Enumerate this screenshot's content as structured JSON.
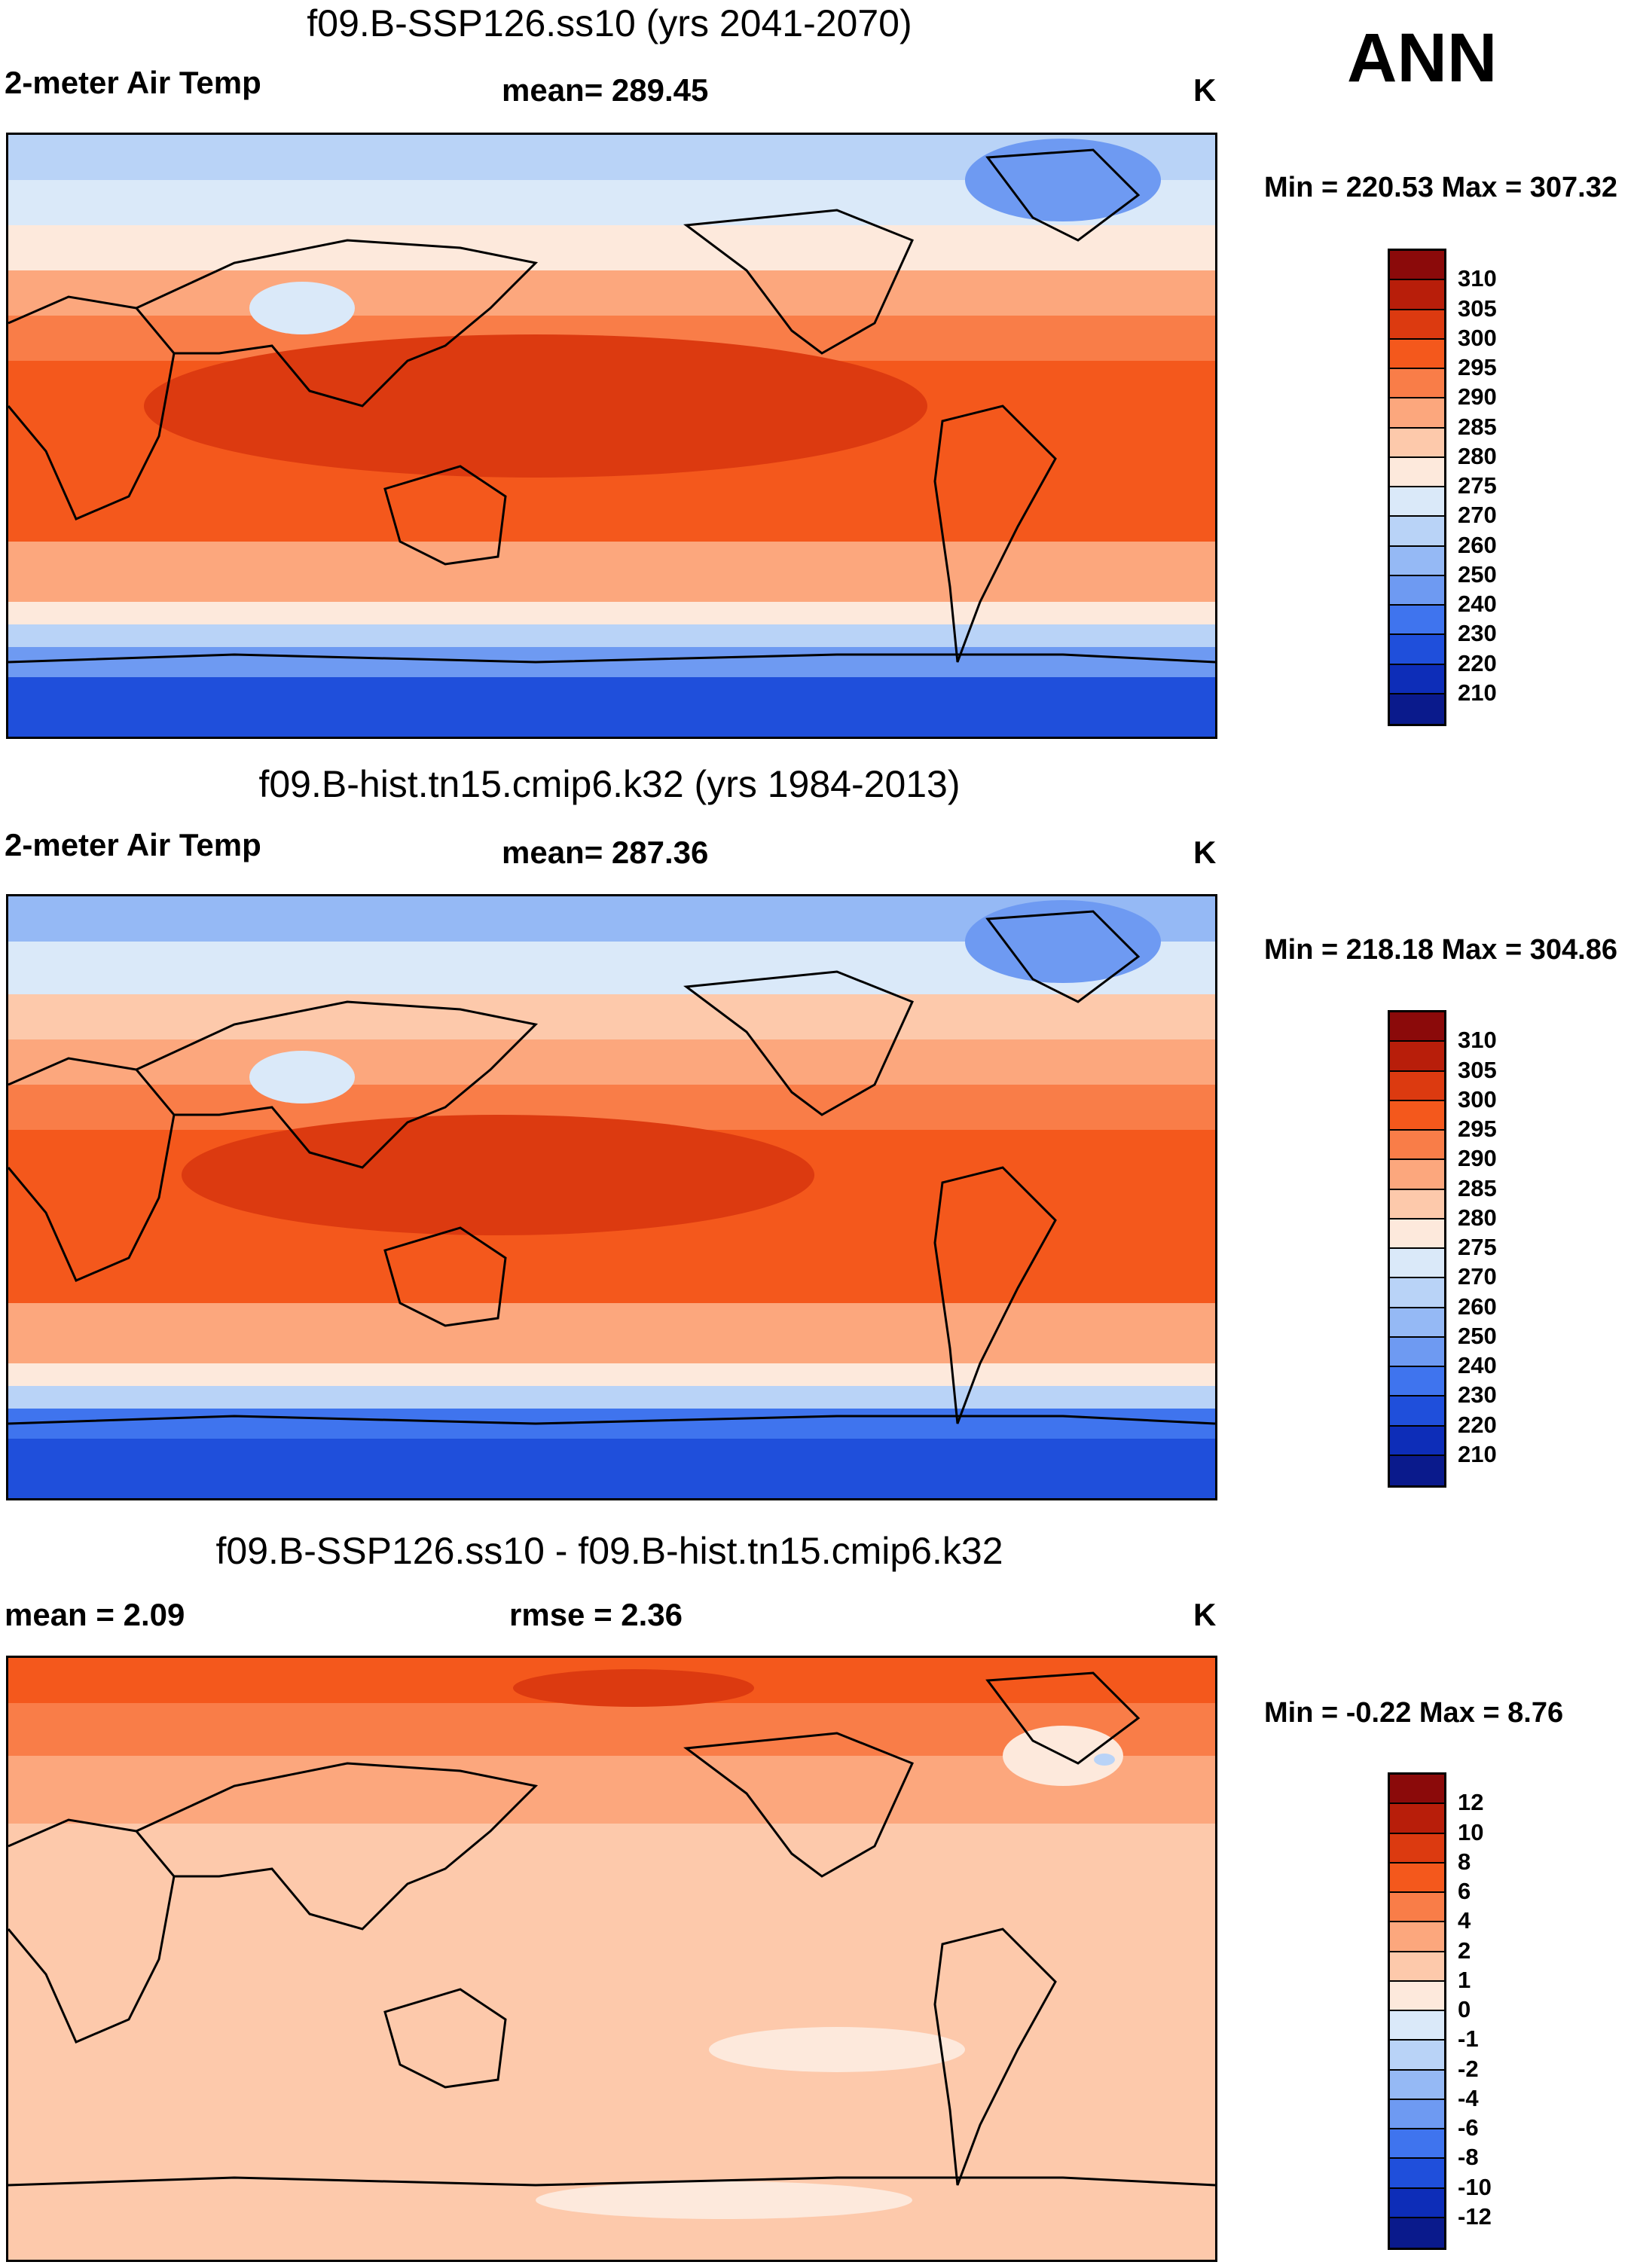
{
  "season": "ANN",
  "units_label": "K",
  "panels": [
    {
      "title": "f09.B-SSP126.ss10 (yrs 2041-2070)",
      "left_label": "2-meter Air Temp",
      "center_label": "mean= 289.45",
      "minmax": "Min = 220.53 Max = 307.32"
    },
    {
      "title": "f09.B-hist.tn15.cmip6.k32 (yrs 1984-2013)",
      "left_label": "2-meter Air Temp",
      "center_label": "mean= 287.36",
      "minmax": "Min = 218.18 Max = 304.86"
    },
    {
      "title": "f09.B-SSP126.ss10 - f09.B-hist.tn15.cmip6.k32",
      "left_label": "mean =   2.09",
      "center_label": "rmse =   2.36",
      "minmax": "Min =  -0.22 Max =   8.76"
    }
  ],
  "colorbars": {
    "temperature": {
      "labels": [
        "310",
        "305",
        "300",
        "295",
        "290",
        "285",
        "280",
        "275",
        "270",
        "260",
        "250",
        "240",
        "230",
        "220",
        "210"
      ],
      "colors": [
        "#8b0a0a",
        "#b81e0a",
        "#dc3a10",
        "#f4581c",
        "#f97d48",
        "#fca77d",
        "#fdc9ab",
        "#fde9dc",
        "#dae9f9",
        "#b9d3f7",
        "#95b9f5",
        "#6e9af2",
        "#3f74ee",
        "#1f4fdb",
        "#0d2db8",
        "#0a1a8c"
      ]
    },
    "difference": {
      "labels": [
        "12",
        "10",
        "8",
        "6",
        "4",
        "2",
        "1",
        "0",
        "-1",
        "-2",
        "-4",
        "-6",
        "-8",
        "-10",
        "-12"
      ],
      "colors": [
        "#8b0a0a",
        "#b81e0a",
        "#dc3a10",
        "#f4581c",
        "#f97d48",
        "#fca77d",
        "#fdc9ab",
        "#fde9dc",
        "#dae9f9",
        "#b9d3f7",
        "#95b9f5",
        "#6e9af2",
        "#3f74ee",
        "#1f4fdb",
        "#0d2db8",
        "#0a1a8c"
      ]
    }
  },
  "chart_data": [
    {
      "type": "heatmap",
      "title": "f09.B-SSP126.ss10 (yrs 2041-2070)",
      "variable": "2-meter Air Temp",
      "units": "K",
      "mean": 289.45,
      "min": 220.53,
      "max": 307.32,
      "levels": [
        210,
        220,
        230,
        240,
        250,
        260,
        270,
        275,
        280,
        285,
        290,
        295,
        300,
        305,
        310
      ],
      "lon_range": [
        0,
        360
      ],
      "lat_range": [
        -90,
        90
      ]
    },
    {
      "type": "heatmap",
      "title": "f09.B-hist.tn15.cmip6.k32 (yrs 1984-2013)",
      "variable": "2-meter Air Temp",
      "units": "K",
      "mean": 287.36,
      "min": 218.18,
      "max": 304.86,
      "levels": [
        210,
        220,
        230,
        240,
        250,
        260,
        270,
        275,
        280,
        285,
        290,
        295,
        300,
        305,
        310
      ],
      "lon_range": [
        0,
        360
      ],
      "lat_range": [
        -90,
        90
      ]
    },
    {
      "type": "heatmap",
      "title": "f09.B-SSP126.ss10 - f09.B-hist.tn15.cmip6.k32",
      "units": "K",
      "mean": 2.09,
      "rmse": 2.36,
      "min": -0.22,
      "max": 8.76,
      "levels": [
        -12,
        -10,
        -8,
        -6,
        -4,
        -2,
        -1,
        0,
        1,
        2,
        4,
        6,
        8,
        10,
        12
      ],
      "lon_range": [
        0,
        360
      ],
      "lat_range": [
        -90,
        90
      ]
    }
  ]
}
